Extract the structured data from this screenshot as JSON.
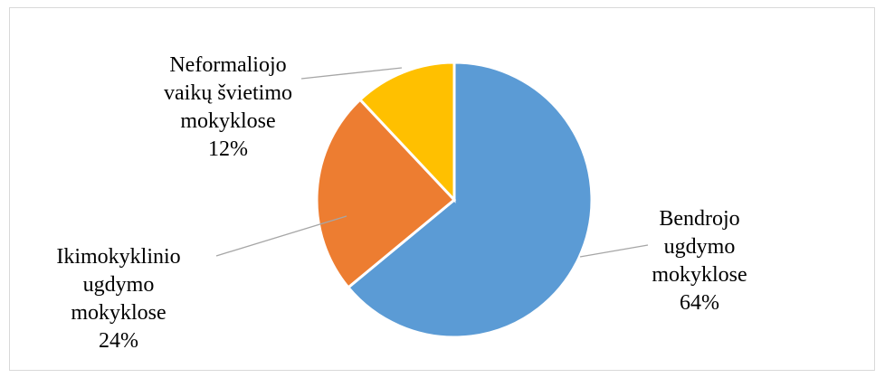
{
  "chart_data": {
    "type": "pie",
    "title": "",
    "slices": [
      {
        "label_lines": [
          "Bendrojo",
          "ugdymo",
          "mokyklose"
        ],
        "percent_label": "64%",
        "value": 64,
        "color": "#5b9bd5"
      },
      {
        "label_lines": [
          "Ikimokyklinio",
          "ugdymo",
          "mokyklose"
        ],
        "percent_label": "24%",
        "value": 24,
        "color": "#ed7d31"
      },
      {
        "label_lines": [
          "Neformaliojo",
          "vaikų švietimo",
          "mokyklose"
        ],
        "percent_label": "12%",
        "value": 12,
        "color": "#ffc000"
      }
    ],
    "start_angle": "12 o'clock",
    "direction": "clockwise",
    "legend": "none"
  }
}
